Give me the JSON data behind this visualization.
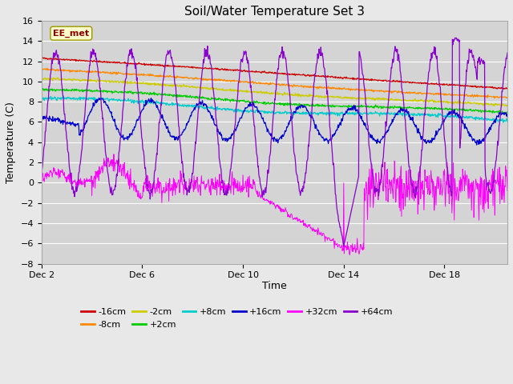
{
  "title": "Soil/Water Temperature Set 3",
  "xlabel": "Time",
  "ylabel": "Temperature (C)",
  "ylim": [
    -8,
    16
  ],
  "yticks": [
    -8,
    -6,
    -4,
    -2,
    0,
    2,
    4,
    6,
    8,
    10,
    12,
    14,
    16
  ],
  "xlim_days": [
    0,
    18.5
  ],
  "xtick_positions": [
    0,
    4,
    8,
    12,
    16
  ],
  "xtick_labels": [
    "Dec 2",
    "Dec 6",
    "Dec 10",
    "Dec 14",
    "Dec 18"
  ],
  "fig_bg_color": "#e8e8e8",
  "plot_bg_color": "#d4d4d4",
  "series_colors": {
    "-16cm": "#cc0000",
    "-8cm": "#ff8800",
    "-2cm": "#cccc00",
    "+2cm": "#00cc00",
    "+8cm": "#00cccc",
    "+16cm": "#0000cc",
    "+32cm": "#ff00ff",
    "+64cm": "#8800cc"
  },
  "legend_label": "EE_met",
  "n_points": 1000
}
